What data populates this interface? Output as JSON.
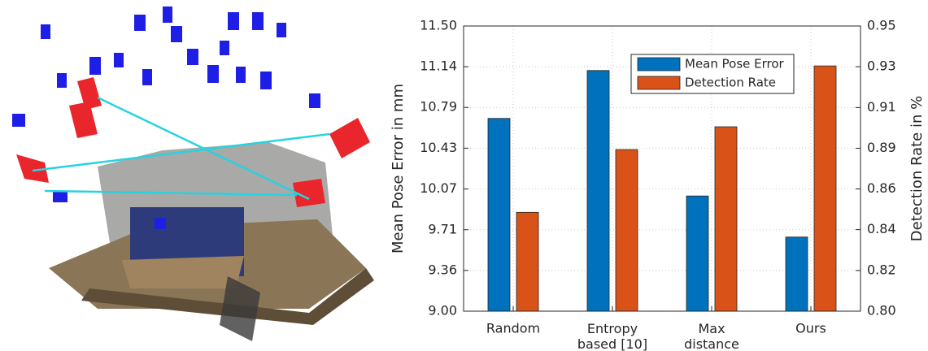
{
  "chart_data": {
    "type": "bar",
    "categories": [
      "Random",
      "Entropy\nbased [10]",
      "Max\ndistance",
      "Ours"
    ],
    "ylabel": "Mean Pose Error in mm",
    "y2label": "Detection Rate in %",
    "ylim": [
      9.0,
      11.5
    ],
    "yticks": [
      {
        "value": 9.0,
        "label": "9.00"
      },
      {
        "value": 9.357,
        "label": "9.36"
      },
      {
        "value": 9.714,
        "label": "9.71"
      },
      {
        "value": 10.071,
        "label": "10.07"
      },
      {
        "value": 10.429,
        "label": "10.43"
      },
      {
        "value": 10.786,
        "label": "10.79"
      },
      {
        "value": 11.143,
        "label": "11.14"
      },
      {
        "value": 11.5,
        "label": "11.50"
      }
    ],
    "y2lim": [
      0.8,
      0.95
    ],
    "y2ticks": [
      {
        "value": 0.8,
        "label": "0.80"
      },
      {
        "value": 0.8214,
        "label": "0.82"
      },
      {
        "value": 0.8429,
        "label": "0.84"
      },
      {
        "value": 0.8643,
        "label": "0.86"
      },
      {
        "value": 0.8857,
        "label": "0.89"
      },
      {
        "value": 0.9071,
        "label": "0.91"
      },
      {
        "value": 0.9286,
        "label": "0.93"
      },
      {
        "value": 0.95,
        "label": "0.95"
      }
    ],
    "grid": true,
    "legend": "upper right",
    "series": [
      {
        "name": "Mean Pose Error",
        "color": "#0072bd",
        "values": [
          10.69,
          11.11,
          10.01,
          9.65
        ]
      },
      {
        "name": "Detection Rate",
        "color": "#d95319",
        "values": [
          0.852,
          0.885,
          0.897,
          0.929
        ],
        "axis": "y2"
      }
    ]
  }
}
